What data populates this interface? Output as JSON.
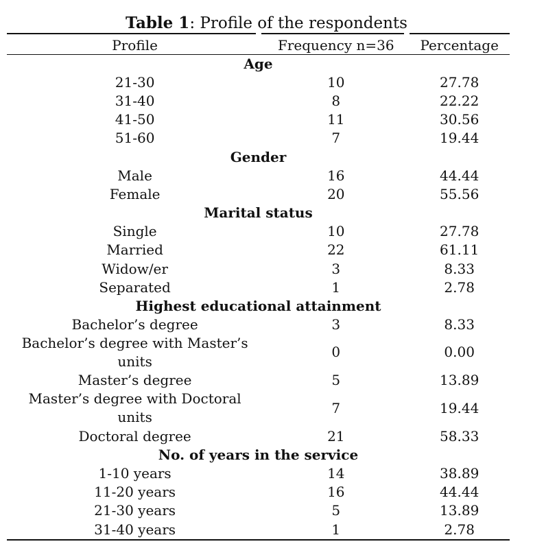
{
  "title": {
    "bold": "Table 1",
    "rest": ": Profile of the respondents"
  },
  "columns": [
    "Profile",
    "Frequency n=36",
    "Percentage"
  ],
  "sections": [
    {
      "heading": "Age",
      "rows": [
        {
          "label": "21-30",
          "frequency": "10",
          "percentage": "27.78"
        },
        {
          "label": "31-40",
          "frequency": "8",
          "percentage": "22.22"
        },
        {
          "label": "41-50",
          "frequency": "11",
          "percentage": "30.56"
        },
        {
          "label": "51-60",
          "frequency": "7",
          "percentage": "19.44"
        }
      ]
    },
    {
      "heading": "Gender",
      "rows": [
        {
          "label": "Male",
          "frequency": "16",
          "percentage": "44.44"
        },
        {
          "label": "Female",
          "frequency": "20",
          "percentage": "55.56"
        }
      ]
    },
    {
      "heading": "Marital status",
      "rows": [
        {
          "label": "Single",
          "frequency": "10",
          "percentage": "27.78"
        },
        {
          "label": "Married",
          "frequency": "22",
          "percentage": "61.11"
        },
        {
          "label": "Widow/er",
          "frequency": "3",
          "percentage": "8.33"
        },
        {
          "label": "Separated",
          "frequency": "1",
          "percentage": "2.78"
        }
      ]
    },
    {
      "heading": "Highest educational attainment",
      "rows": [
        {
          "label": "Bachelor’s degree",
          "frequency": "3",
          "percentage": "8.33"
        },
        {
          "label": "Bachelor’s degree with Master’s units",
          "frequency": "0",
          "percentage": "0.00",
          "tall": true
        },
        {
          "label": "Master’s degree",
          "frequency": "5",
          "percentage": "13.89"
        },
        {
          "label": "Master’s degree with Doctoral units",
          "frequency": "7",
          "percentage": "19.44",
          "tall": true
        },
        {
          "label": "Doctoral degree",
          "frequency": "21",
          "percentage": "58.33"
        }
      ]
    },
    {
      "heading": "No. of years in the service",
      "rows": [
        {
          "label": "1-10 years",
          "frequency": "14",
          "percentage": "38.89"
        },
        {
          "label": "11-20 years",
          "frequency": "16",
          "percentage": "44.44"
        },
        {
          "label": "21-30 years",
          "frequency": "5",
          "percentage": "13.89"
        },
        {
          "label": "31-40 years",
          "frequency": "1",
          "percentage": "2.78"
        }
      ]
    }
  ]
}
